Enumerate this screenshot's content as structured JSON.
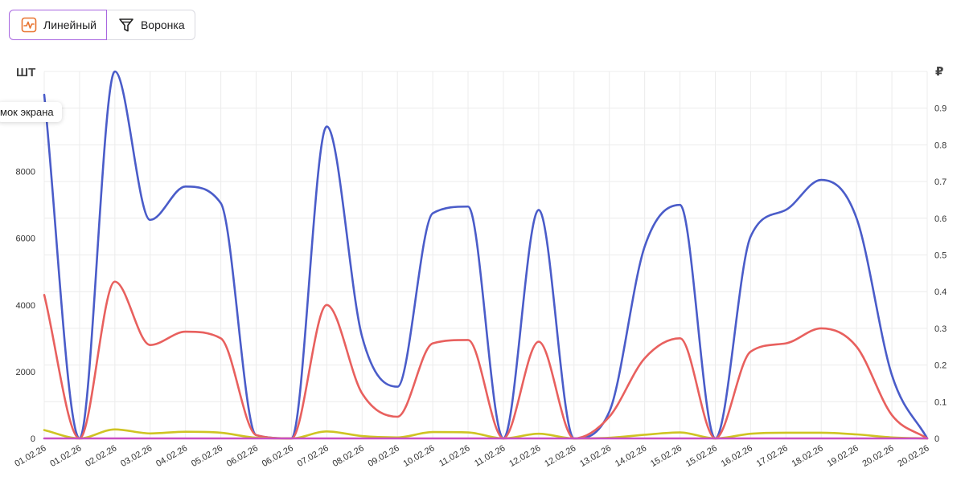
{
  "tabs": [
    {
      "label": "Линейный",
      "icon": "line-chart-icon",
      "active": true
    },
    {
      "label": "Воронка",
      "icon": "funnel-icon",
      "active": false
    }
  ],
  "tooltip": {
    "text": "мок экрана"
  },
  "chart_data": {
    "type": "line",
    "left_axis": {
      "label": "ШТ",
      "ticks": [
        0,
        2000,
        4000,
        6000,
        8000
      ],
      "range": [
        0,
        11000
      ]
    },
    "right_axis": {
      "label": "₽",
      "ticks": [
        0,
        0.1,
        0.2,
        0.3,
        0.4,
        0.5,
        0.6,
        0.7,
        0.8,
        0.9
      ],
      "range": [
        0,
        1.0
      ]
    },
    "grid": true,
    "x": [
      "01.02.26",
      "01.02.26",
      "02.02.26",
      "03.02.26",
      "04.02.26",
      "05.02.26",
      "06.02.26",
      "06.02.26",
      "07.02.26",
      "08.02.26",
      "09.02.26",
      "10.02.26",
      "11.02.26",
      "11.02.26",
      "12.02.26",
      "12.02.26",
      "13.02.26",
      "14.02.26",
      "15.02.26",
      "15.02.26",
      "16.02.26",
      "17.02.26",
      "18.02.26",
      "19.02.26",
      "20.02.26",
      "20.02.26"
    ],
    "series": [
      {
        "color": "#4a5cc9",
        "values": [
          10300,
          0,
          11000,
          6550,
          7550,
          7050,
          100,
          0,
          9350,
          3050,
          1550,
          6750,
          6950,
          0,
          6850,
          0,
          800,
          5750,
          7000,
          0,
          6050,
          6850,
          7750,
          6600,
          1900,
          0
        ]
      },
      {
        "color": "#e8605e",
        "values": [
          4300,
          0,
          4700,
          2800,
          3200,
          3000,
          100,
          0,
          4000,
          1350,
          650,
          2850,
          2950,
          0,
          2900,
          0,
          650,
          2400,
          3000,
          0,
          2600,
          2850,
          3300,
          2750,
          700,
          0
        ]
      },
      {
        "color": "#cfc423",
        "values": [
          250,
          0,
          270,
          150,
          200,
          170,
          20,
          0,
          210,
          70,
          30,
          190,
          180,
          0,
          140,
          0,
          20,
          110,
          180,
          0,
          140,
          170,
          170,
          120,
          30,
          0
        ]
      },
      {
        "color": "#c94fc4",
        "values": [
          0,
          0,
          0,
          0,
          0,
          0,
          0,
          0,
          0,
          0,
          0,
          0,
          0,
          0,
          0,
          0,
          0,
          0,
          0,
          0,
          0,
          0,
          0,
          0,
          0,
          0
        ]
      }
    ]
  }
}
